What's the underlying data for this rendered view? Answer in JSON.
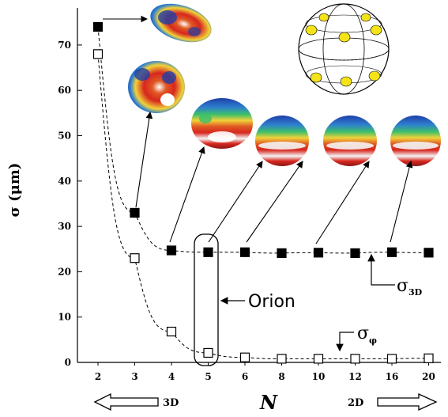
{
  "chart_data": {
    "type": "scatter",
    "x_categories": [
      "2",
      "3",
      "4",
      "5",
      "6",
      "8",
      "10",
      "12",
      "16",
      "20"
    ],
    "xlabel": "N",
    "ylabel": "σ (μm)",
    "ylim": [
      0,
      75
    ],
    "yticks": [
      0,
      10,
      20,
      30,
      40,
      50,
      60,
      70
    ],
    "series": [
      {
        "name": "σ3D",
        "marker": "filled-square",
        "values": [
          74,
          33,
          24.7,
          24.3,
          24.3,
          24.1,
          24.2,
          24.1,
          24.3,
          24.2
        ]
      },
      {
        "name": "σφ",
        "marker": "open-square",
        "values": [
          68,
          23,
          6.8,
          2.1,
          1.1,
          0.8,
          0.8,
          0.8,
          0.8,
          0.9
        ]
      }
    ],
    "labels": {
      "sigma3d_main": "σ",
      "sigma3d_sub": "3D",
      "sigmaphi_main": "σ",
      "sigmaphi_sub": "φ",
      "orion": "Orion",
      "dir_left": "3D",
      "dir_right": "2D"
    },
    "colors": {
      "ink": "#000000",
      "sphere_red": "#d7261e",
      "sphere_blue": "#1f3fa8",
      "dot": "#f5e31a"
    }
  }
}
